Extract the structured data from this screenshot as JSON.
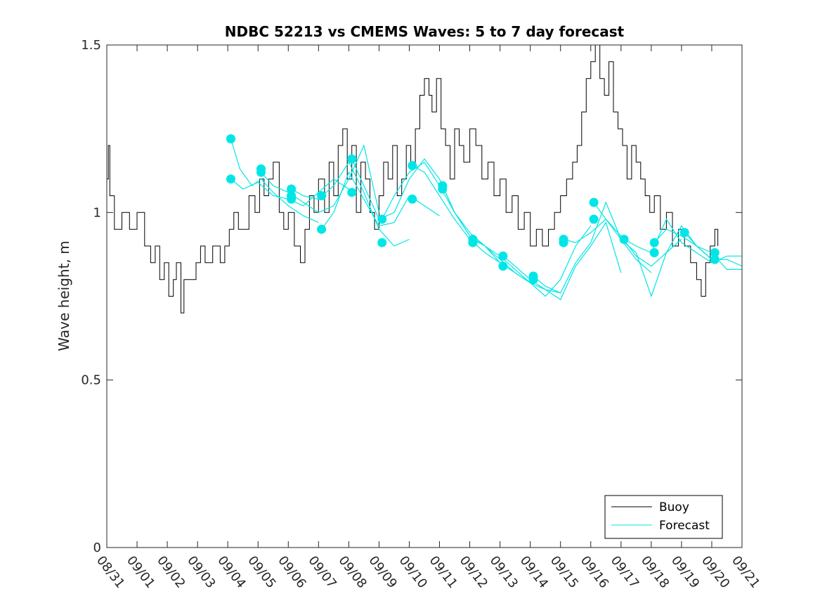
{
  "chart_data": {
    "type": "line",
    "title": "NDBC 52213 vs CMEMS Waves: 5 to 7 day forecast",
    "xlabel": "",
    "ylabel": "Wave height, m",
    "xlim": [
      0,
      21
    ],
    "ylim": [
      0,
      1.5
    ],
    "x_tick_labels": [
      "08/31",
      "09/01",
      "09/02",
      "09/03",
      "09/04",
      "09/05",
      "09/06",
      "09/07",
      "09/08",
      "09/09",
      "09/10",
      "09/11",
      "09/12",
      "09/13",
      "09/14",
      "09/15",
      "09/16",
      "09/17",
      "09/18",
      "09/19",
      "09/20",
      "09/21"
    ],
    "y_ticks": [
      0,
      0.5,
      1,
      1.5
    ],
    "y_tick_labels": [
      "0",
      "0.5",
      "1",
      "1.5"
    ],
    "x_unit": "days since 08/31 00:00",
    "legend": {
      "location": "bottom-right",
      "entries": [
        "Buoy",
        "Forecast"
      ]
    },
    "series": [
      {
        "name": "Buoy",
        "color": "#000000",
        "x": [
          0,
          0.05,
          0.1,
          0.25,
          0.5,
          0.75,
          1.0,
          1.25,
          1.45,
          1.6,
          1.75,
          1.9,
          2.05,
          2.2,
          2.3,
          2.45,
          2.55,
          2.75,
          2.95,
          3.1,
          3.25,
          3.5,
          3.75,
          3.9,
          4.05,
          4.2,
          4.35,
          4.5,
          4.7,
          4.9,
          5.05,
          5.2,
          5.35,
          5.5,
          5.7,
          5.85,
          6.0,
          6.2,
          6.4,
          6.55,
          6.7,
          6.85,
          7.0,
          7.2,
          7.35,
          7.5,
          7.65,
          7.8,
          7.95,
          8.1,
          8.25,
          8.4,
          8.55,
          8.7,
          8.85,
          9.0,
          9.15,
          9.3,
          9.45,
          9.6,
          9.75,
          9.9,
          10.05,
          10.2,
          10.35,
          10.5,
          10.65,
          10.75,
          10.9,
          11.05,
          11.2,
          11.35,
          11.5,
          11.65,
          11.8,
          12.0,
          12.2,
          12.4,
          12.6,
          12.8,
          13.0,
          13.2,
          13.4,
          13.6,
          13.8,
          14.0,
          14.2,
          14.4,
          14.6,
          14.8,
          15.0,
          15.2,
          15.4,
          15.55,
          15.7,
          15.85,
          16.0,
          16.15,
          16.3,
          16.45,
          16.6,
          16.75,
          16.9,
          17.05,
          17.2,
          17.35,
          17.5,
          17.65,
          17.8,
          17.95,
          18.1,
          18.3,
          18.5,
          18.7,
          18.9,
          19.1,
          19.3,
          19.5,
          19.65,
          19.8,
          19.95,
          20.1,
          20.2
        ],
        "y": [
          1.1,
          1.2,
          1.05,
          0.95,
          1.0,
          0.95,
          1.0,
          0.9,
          0.85,
          0.9,
          0.8,
          0.85,
          0.75,
          0.8,
          0.85,
          0.7,
          0.8,
          0.8,
          0.85,
          0.9,
          0.85,
          0.9,
          0.85,
          0.9,
          0.95,
          1.0,
          0.95,
          0.95,
          1.05,
          1.0,
          1.1,
          1.05,
          1.1,
          1.15,
          1.0,
          0.95,
          1.0,
          0.9,
          0.85,
          0.95,
          1.05,
          1.0,
          1.1,
          1.0,
          1.15,
          1.05,
          1.2,
          1.25,
          1.1,
          1.2,
          1.0,
          1.15,
          1.1,
          1.0,
          0.95,
          1.05,
          1.15,
          1.1,
          1.2,
          1.05,
          1.1,
          1.2,
          1.15,
          1.25,
          1.35,
          1.4,
          1.35,
          1.3,
          1.4,
          1.25,
          1.2,
          1.1,
          1.25,
          1.2,
          1.15,
          1.25,
          1.2,
          1.1,
          1.15,
          1.05,
          1.1,
          1.0,
          1.05,
          0.95,
          1.0,
          0.9,
          0.95,
          0.9,
          0.95,
          1.0,
          1.05,
          1.1,
          1.15,
          1.2,
          1.3,
          1.4,
          1.45,
          1.5,
          1.4,
          1.35,
          1.45,
          1.3,
          1.25,
          1.2,
          1.1,
          1.2,
          1.15,
          1.1,
          1.05,
          1.0,
          1.05,
          0.95,
          1.0,
          0.9,
          0.95,
          0.9,
          0.85,
          0.8,
          0.75,
          0.85,
          0.9,
          0.95,
          0.9
        ]
      },
      {
        "name": "Forecast",
        "color": "#00e6e6",
        "runs": [
          {
            "x": [
              4.1,
              4.4,
              4.8,
              5.1,
              5.5,
              6.0,
              6.5,
              7.0
            ],
            "y": [
              1.22,
              1.13,
              1.08,
              1.1,
              1.06,
              1.02,
              0.99,
              0.97
            ]
          },
          {
            "x": [
              4.1,
              4.5,
              5.0,
              5.5,
              6.0,
              6.5,
              7.0,
              7.5,
              8.0
            ],
            "y": [
              1.1,
              1.07,
              1.09,
              1.05,
              1.04,
              1.02,
              1.06,
              1.1,
              1.07
            ]
          },
          {
            "x": [
              5.1,
              5.5,
              6.0,
              6.5,
              7.0,
              7.5,
              8.0,
              8.5,
              9.0
            ],
            "y": [
              1.12,
              1.08,
              1.06,
              1.03,
              1.0,
              1.02,
              1.1,
              1.2,
              1.0
            ]
          },
          {
            "x": [
              6.1,
              6.5,
              7.0,
              7.5,
              8.0,
              8.5,
              9.0,
              9.5,
              10.0
            ],
            "y": [
              1.07,
              1.05,
              1.04,
              1.08,
              1.15,
              1.06,
              0.95,
              0.9,
              0.92
            ]
          },
          {
            "x": [
              7.1,
              7.5,
              8.0,
              8.5,
              9.0,
              9.5,
              10.0,
              10.5,
              11.0
            ],
            "y": [
              0.95,
              1.0,
              1.12,
              1.04,
              0.96,
              0.97,
              1.05,
              1.02,
              0.99
            ]
          },
          {
            "x": [
              8.1,
              8.5,
              9.0,
              9.5,
              10.0,
              10.5,
              11.0,
              11.5,
              12.0
            ],
            "y": [
              1.16,
              1.08,
              0.98,
              1.0,
              1.1,
              1.16,
              1.1,
              1.0,
              0.93
            ]
          },
          {
            "x": [
              9.1,
              9.5,
              10.0,
              10.5,
              11.0,
              11.5,
              12.0,
              12.5,
              13.0
            ],
            "y": [
              0.98,
              1.05,
              1.12,
              1.15,
              1.08,
              1.0,
              0.94,
              0.9,
              0.85
            ]
          },
          {
            "x": [
              10.1,
              10.5,
              11.0,
              11.5,
              12.0,
              12.5,
              13.0,
              13.5,
              14.0
            ],
            "y": [
              1.14,
              1.12,
              1.05,
              0.98,
              0.92,
              0.88,
              0.85,
              0.82,
              0.79
            ]
          },
          {
            "x": [
              11.1,
              11.5,
              12.0,
              12.5,
              13.0,
              13.5,
              14.0,
              14.5,
              15.0
            ],
            "y": [
              1.08,
              1.0,
              0.93,
              0.9,
              0.86,
              0.82,
              0.79,
              0.77,
              0.76
            ]
          },
          {
            "x": [
              12.1,
              12.5,
              13.0,
              13.5,
              14.0,
              14.5,
              15.0,
              15.5,
              16.0
            ],
            "y": [
              0.92,
              0.9,
              0.87,
              0.83,
              0.79,
              0.75,
              0.8,
              0.9,
              0.96
            ]
          },
          {
            "x": [
              13.1,
              13.5,
              14.0,
              14.5,
              15.0,
              15.5,
              16.0,
              16.5,
              17.0
            ],
            "y": [
              0.87,
              0.84,
              0.8,
              0.77,
              0.74,
              0.84,
              0.9,
              0.97,
              0.82
            ]
          },
          {
            "x": [
              14.1,
              14.5,
              15.0,
              15.5,
              16.0,
              16.5,
              17.0,
              17.5,
              18.0
            ],
            "y": [
              0.81,
              0.78,
              0.76,
              0.85,
              0.91,
              1.03,
              0.92,
              0.86,
              0.82
            ]
          },
          {
            "x": [
              15.1,
              15.5,
              16.0,
              16.5,
              17.0,
              17.5,
              18.0,
              18.5,
              19.0
            ],
            "y": [
              0.92,
              0.91,
              0.94,
              0.98,
              0.93,
              0.87,
              0.84,
              0.88,
              0.92
            ]
          },
          {
            "x": [
              16.1,
              16.5,
              17.0,
              17.5,
              18.0,
              18.5,
              19.0,
              19.5,
              20.0
            ],
            "y": [
              1.03,
              0.98,
              0.92,
              0.88,
              0.75,
              0.88,
              0.96,
              0.9,
              0.86
            ]
          },
          {
            "x": [
              17.1,
              17.5,
              18.0,
              18.5,
              19.0,
              19.5,
              20.0,
              20.5,
              21.0
            ],
            "y": [
              0.92,
              0.9,
              0.88,
              0.98,
              0.91,
              0.88,
              0.85,
              0.87,
              0.87
            ]
          },
          {
            "x": [
              18.1,
              18.5,
              19.0,
              19.5,
              20.0,
              20.5,
              21.0
            ],
            "y": [
              0.91,
              0.95,
              0.93,
              0.9,
              0.86,
              0.86,
              0.84
            ]
          },
          {
            "x": [
              19.1,
              19.5,
              20.0,
              20.5,
              21.0
            ],
            "y": [
              0.94,
              0.9,
              0.88,
              0.83,
              0.83
            ]
          }
        ],
        "markers": [
          {
            "x": 4.1,
            "y": 1.22
          },
          {
            "x": 4.1,
            "y": 1.1
          },
          {
            "x": 5.1,
            "y": 1.13
          },
          {
            "x": 5.1,
            "y": 1.12
          },
          {
            "x": 6.1,
            "y": 1.07
          },
          {
            "x": 6.1,
            "y": 1.04
          },
          {
            "x": 6.1,
            "y": 1.05
          },
          {
            "x": 7.1,
            "y": 1.05
          },
          {
            "x": 7.1,
            "y": 0.95
          },
          {
            "x": 8.1,
            "y": 1.16
          },
          {
            "x": 8.1,
            "y": 1.06
          },
          {
            "x": 9.1,
            "y": 0.98
          },
          {
            "x": 9.1,
            "y": 0.91
          },
          {
            "x": 10.1,
            "y": 1.14
          },
          {
            "x": 10.1,
            "y": 1.04
          },
          {
            "x": 11.1,
            "y": 1.08
          },
          {
            "x": 11.1,
            "y": 1.07
          },
          {
            "x": 12.1,
            "y": 0.92
          },
          {
            "x": 12.1,
            "y": 0.91
          },
          {
            "x": 13.1,
            "y": 0.87
          },
          {
            "x": 13.1,
            "y": 0.84
          },
          {
            "x": 14.1,
            "y": 0.81
          },
          {
            "x": 14.1,
            "y": 0.8
          },
          {
            "x": 15.1,
            "y": 0.92
          },
          {
            "x": 15.1,
            "y": 0.91
          },
          {
            "x": 16.1,
            "y": 1.03
          },
          {
            "x": 16.1,
            "y": 0.98
          },
          {
            "x": 17.1,
            "y": 0.92
          },
          {
            "x": 18.1,
            "y": 0.91
          },
          {
            "x": 18.1,
            "y": 0.88
          },
          {
            "x": 19.1,
            "y": 0.94
          },
          {
            "x": 20.1,
            "y": 0.88
          },
          {
            "x": 20.1,
            "y": 0.86
          }
        ]
      }
    ]
  }
}
